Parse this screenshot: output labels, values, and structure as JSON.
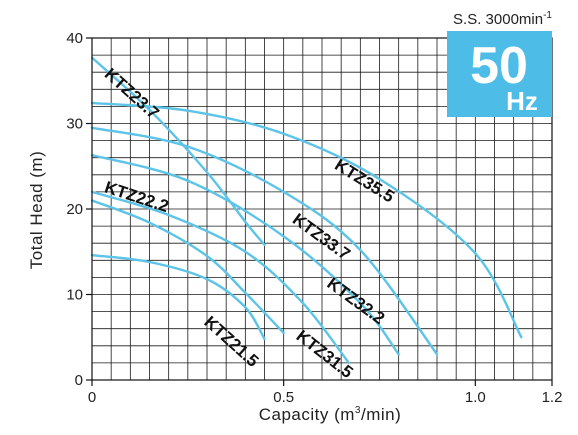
{
  "chart_data": {
    "type": "line",
    "title": "",
    "xlabel": "Capacity (m",
    "xlabel_sup": "3",
    "xlabel_tail": "/min)",
    "ylabel": "Total Head (m)",
    "xlim": [
      0,
      1.2
    ],
    "ylim": [
      0,
      40
    ],
    "x_ticks": [
      {
        "value": 0,
        "label": "0"
      },
      {
        "value": 0.5,
        "label": "0.5"
      },
      {
        "value": 1.0,
        "label": "1.0"
      },
      {
        "value": 1.2,
        "label": "1.2"
      }
    ],
    "y_ticks": [
      {
        "value": 0,
        "label": "0"
      },
      {
        "value": 10,
        "label": "10"
      },
      {
        "value": 20,
        "label": "20"
      },
      {
        "value": 30,
        "label": "30"
      },
      {
        "value": 40,
        "label": "40"
      }
    ],
    "grid": true,
    "grid_minor": {
      "x_step": 0.05,
      "y_step": 2
    },
    "line_color": "#5bc4e8",
    "speed_note": {
      "text": "S.S. 3000min",
      "sup": "-1"
    },
    "badge": {
      "big": "50",
      "small": "Hz",
      "color": "#4dbde8"
    },
    "series": [
      {
        "name": "KTZ35.5",
        "points": [
          [
            0,
            32.4
          ],
          [
            0.25,
            31.5
          ],
          [
            0.5,
            28.8
          ],
          [
            0.75,
            23.5
          ],
          [
            1.0,
            14.8
          ],
          [
            1.12,
            5
          ]
        ],
        "label_at": [
          0.63,
          24.8
        ],
        "label_angle": 32
      },
      {
        "name": "KTZ33.7",
        "points": [
          [
            0,
            29.5
          ],
          [
            0.25,
            27.3
          ],
          [
            0.5,
            22.0
          ],
          [
            0.7,
            15.2
          ],
          [
            0.9,
            3
          ]
        ],
        "label_at": [
          0.52,
          18.5
        ],
        "label_angle": 36
      },
      {
        "name": "KTZ32.2",
        "points": [
          [
            0,
            26.3
          ],
          [
            0.25,
            23.3
          ],
          [
            0.5,
            16.8
          ],
          [
            0.7,
            9.0
          ],
          [
            0.8,
            3
          ]
        ],
        "label_at": [
          0.61,
          11.0
        ],
        "label_angle": 36
      },
      {
        "name": "KTZ31.5",
        "points": [
          [
            0,
            22.0
          ],
          [
            0.2,
            19.3
          ],
          [
            0.4,
            15.0
          ],
          [
            0.55,
            9.0
          ],
          [
            0.67,
            2
          ]
        ],
        "label_at": [
          0.53,
          4.9
        ],
        "label_angle": 38
      },
      {
        "name": "KTZ23.7",
        "points": [
          [
            0,
            37.7
          ],
          [
            0.15,
            31.6
          ],
          [
            0.3,
            24.3
          ],
          [
            0.4,
            18.5
          ],
          [
            0.45,
            15.8
          ]
        ],
        "label_at": [
          0.03,
          35.6
        ],
        "label_angle": 42
      },
      {
        "name": "KTZ22.2",
        "points": [
          [
            0,
            21.0
          ],
          [
            0.15,
            18.4
          ],
          [
            0.3,
            14.5
          ],
          [
            0.4,
            10.2
          ],
          [
            0.5,
            5.5
          ]
        ],
        "label_at": [
          0.03,
          22.0
        ],
        "label_angle": 18
      },
      {
        "name": "KTZ21.5",
        "points": [
          [
            0,
            14.6
          ],
          [
            0.15,
            13.8
          ],
          [
            0.3,
            11.8
          ],
          [
            0.4,
            8.5
          ],
          [
            0.45,
            4.8
          ]
        ],
        "label_at": [
          0.29,
          6.6
        ],
        "label_angle": 42
      }
    ]
  }
}
